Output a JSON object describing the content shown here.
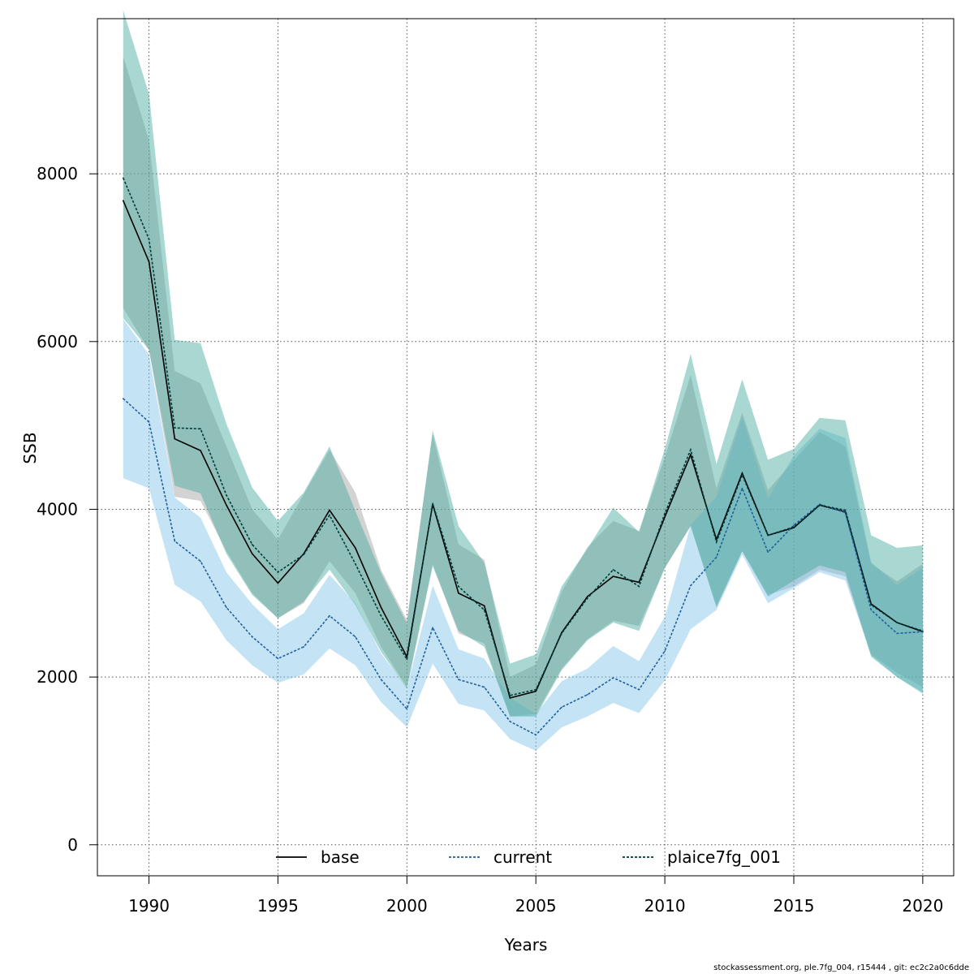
{
  "chart_data": {
    "type": "area",
    "xlabel": "Years",
    "ylabel": "SSB",
    "xlim": [
      1988,
      2021.2
    ],
    "ylim": [
      -370,
      9850
    ],
    "xticks": [
      1990,
      1995,
      2000,
      2005,
      2010,
      2015,
      2020
    ],
    "yticks": [
      0,
      2000,
      4000,
      6000,
      8000
    ],
    "grid": true,
    "legend_position": "bottom-center",
    "x": [
      1989,
      1990,
      1991,
      1992,
      1993,
      1994,
      1995,
      1996,
      1997,
      1998,
      1999,
      2000,
      2001,
      2002,
      2003,
      2004,
      2005,
      2006,
      2007,
      2008,
      2009,
      2010,
      2011,
      2012,
      2013,
      2014,
      2015,
      2016,
      2017,
      2018,
      2019,
      2020
    ],
    "series": [
      {
        "name": "base",
        "line_color": "#000000",
        "band_color": "#9e9e9e",
        "dash": "solid",
        "values": [
          7680,
          6950,
          4840,
          4700,
          4050,
          3470,
          3120,
          3470,
          3990,
          3540,
          2830,
          2240,
          4060,
          3000,
          2850,
          1750,
          1830,
          2530,
          2960,
          3200,
          3130,
          3910,
          4650,
          3640,
          4430,
          3690,
          3780,
          4050,
          3970,
          2870,
          2650,
          2540
        ],
        "lower": [
          6400,
          5900,
          4150,
          4100,
          3500,
          3000,
          2700,
          2880,
          3380,
          3000,
          2360,
          1880,
          3350,
          2520,
          2400,
          1530,
          1560,
          2100,
          2450,
          2670,
          2610,
          3300,
          3800,
          2850,
          3500,
          2980,
          3080,
          3280,
          3200,
          2270,
          2050,
          1880
        ],
        "upper": [
          9400,
          8400,
          5650,
          5500,
          4750,
          4000,
          3640,
          4180,
          4710,
          4200,
          3280,
          2680,
          4900,
          3580,
          3400,
          2000,
          2150,
          3020,
          3550,
          3860,
          3740,
          4620,
          5600,
          4250,
          5150,
          4230,
          4580,
          4920,
          4750,
          3350,
          3140,
          3350
        ]
      },
      {
        "name": "current",
        "line_color": "#1f5fa0",
        "band_color": "#7cc0e6",
        "dash": "dashed",
        "values": [
          5320,
          5040,
          3620,
          3380,
          2830,
          2480,
          2220,
          2360,
          2730,
          2480,
          1970,
          1620,
          2590,
          1970,
          1880,
          1470,
          1310,
          1640,
          1790,
          1990,
          1850,
          2310,
          3090,
          3430,
          4250,
          3490,
          3810,
          4060,
          3960,
          2800,
          2520,
          2540
        ],
        "lower": [
          4370,
          4250,
          3100,
          2900,
          2440,
          2140,
          1930,
          2030,
          2340,
          2140,
          1700,
          1400,
          2160,
          1680,
          1600,
          1260,
          1120,
          1400,
          1530,
          1690,
          1570,
          1960,
          2570,
          2800,
          3460,
          2880,
          3060,
          3250,
          3150,
          2260,
          2000,
          1820
        ],
        "upper": [
          6270,
          5840,
          4140,
          3900,
          3250,
          2870,
          2570,
          2760,
          3220,
          2880,
          2280,
          1870,
          3090,
          2330,
          2220,
          1750,
          1560,
          1950,
          2100,
          2370,
          2190,
          2720,
          3810,
          4150,
          5100,
          4130,
          4640,
          4960,
          4850,
          3370,
          3100,
          3300
        ]
      },
      {
        "name": "plaice7fg_001",
        "line_color": "#003a3a",
        "band_color": "#3ea89a",
        "dash": "dashed",
        "values": [
          7950,
          7220,
          4970,
          4960,
          4170,
          3580,
          3250,
          3460,
          3930,
          3350,
          2730,
          2210,
          4070,
          3080,
          2800,
          1780,
          1850,
          2520,
          2940,
          3280,
          3080,
          3950,
          4710,
          3610,
          4410,
          3690,
          3790,
          4050,
          3990,
          2860,
          2650,
          2550
        ],
        "lower": [
          6280,
          5900,
          4280,
          4190,
          3470,
          2980,
          2700,
          2900,
          3280,
          2860,
          2300,
          1860,
          3320,
          2550,
          2360,
          1530,
          1530,
          2080,
          2440,
          2650,
          2550,
          3300,
          3800,
          2830,
          3500,
          2960,
          3150,
          3330,
          3250,
          2240,
          2000,
          1800
        ],
        "upper": [
          9950,
          8950,
          6020,
          5980,
          5020,
          4260,
          3860,
          4200,
          4750,
          3980,
          3240,
          2640,
          4940,
          3800,
          3360,
          2160,
          2270,
          3080,
          3530,
          4020,
          3730,
          4720,
          5850,
          4540,
          5550,
          4590,
          4720,
          5090,
          5060,
          3690,
          3540,
          3570
        ]
      }
    ]
  },
  "footer_text": "stockassessment.org, ple.7fg_004, r15444 , git: ec2c2a0c6dde"
}
